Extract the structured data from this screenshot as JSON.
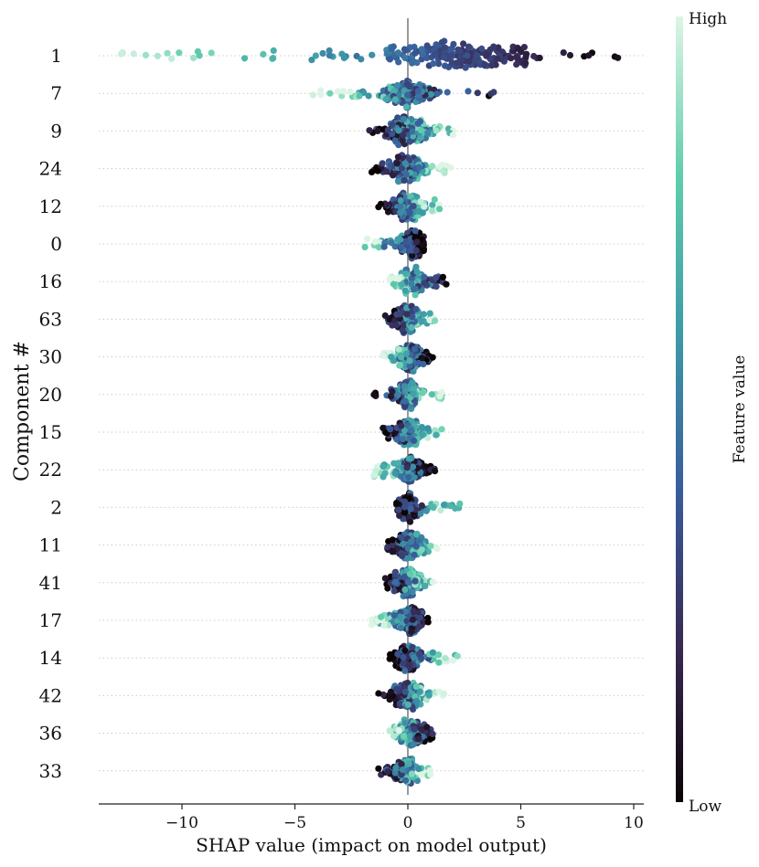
{
  "chart_data": {
    "type": "scatter",
    "subtype": "beeswarm",
    "title": "",
    "xlabel": "SHAP value (impact on model output)",
    "ylabel": "Component #",
    "xlim": [
      -13.8,
      10.4
    ],
    "xticks": [
      -10,
      -5,
      0,
      5,
      10
    ],
    "xtick_labels": [
      "−10",
      "−5",
      "0",
      "5",
      "10"
    ],
    "zero_line": true,
    "grid": false,
    "colorbar": {
      "label": "Feature value",
      "high_label": "High",
      "low_label": "Low",
      "colors": [
        "#0b0405",
        "#382a54",
        "#395d9c",
        "#3e9ba8",
        "#60ceac",
        "#def5e5"
      ]
    },
    "features": [
      {
        "name": "1",
        "min": -12.7,
        "max": 9.3,
        "lo_dir": 1,
        "spread": 0.14,
        "peak": 2.5,
        "width": 1.9,
        "density": 1.0
      },
      {
        "name": "7",
        "min": -4.2,
        "max": 3.8,
        "lo_dir": 1,
        "spread": 0.55,
        "peak": 0.0,
        "width": 0.55,
        "density": 0.9
      },
      {
        "name": "9",
        "min": -1.7,
        "max": 2.0,
        "lo_dir": -1,
        "spread": 0.55,
        "peak": 0.0,
        "width": 0.4,
        "density": 0.8
      },
      {
        "name": "24",
        "min": -1.6,
        "max": 1.9,
        "lo_dir": -1,
        "spread": 0.55,
        "peak": 0.0,
        "width": 0.4,
        "density": 0.8
      },
      {
        "name": "12",
        "min": -1.3,
        "max": 1.4,
        "lo_dir": -1,
        "spread": 0.55,
        "peak": 0.0,
        "width": 0.35,
        "density": 0.8
      },
      {
        "name": "0",
        "min": -1.9,
        "max": 0.7,
        "lo_dir": 1,
        "spread": 0.6,
        "peak": 0.25,
        "width": 0.25,
        "density": 0.8
      },
      {
        "name": "16",
        "min": -0.8,
        "max": 1.7,
        "lo_dir": 1,
        "spread": 0.55,
        "peak": 0.1,
        "width": 0.3,
        "density": 0.8
      },
      {
        "name": "63",
        "min": -1.0,
        "max": 1.2,
        "lo_dir": -1,
        "spread": 0.55,
        "peak": 0.0,
        "width": 0.3,
        "density": 0.8
      },
      {
        "name": "30",
        "min": -1.1,
        "max": 1.1,
        "lo_dir": 1,
        "spread": 0.55,
        "peak": 0.1,
        "width": 0.3,
        "density": 0.8
      },
      {
        "name": "20",
        "min": -1.5,
        "max": 1.5,
        "lo_dir": -1,
        "spread": 0.55,
        "peak": 0.0,
        "width": 0.3,
        "density": 0.8
      },
      {
        "name": "15",
        "min": -1.1,
        "max": 1.5,
        "lo_dir": -1,
        "spread": 0.55,
        "peak": 0.0,
        "width": 0.3,
        "density": 0.8
      },
      {
        "name": "22",
        "min": -1.5,
        "max": 1.2,
        "lo_dir": 1,
        "spread": 0.55,
        "peak": 0.1,
        "width": 0.3,
        "density": 0.8
      },
      {
        "name": "2",
        "min": -0.5,
        "max": 2.3,
        "lo_dir": -1,
        "spread": 0.6,
        "peak": 0.0,
        "width": 0.25,
        "density": 0.8
      },
      {
        "name": "11",
        "min": -0.9,
        "max": 1.3,
        "lo_dir": -1,
        "spread": 0.55,
        "peak": 0.0,
        "width": 0.3,
        "density": 0.8
      },
      {
        "name": "41",
        "min": -1.0,
        "max": 1.1,
        "lo_dir": -1,
        "spread": 0.55,
        "peak": 0.0,
        "width": 0.3,
        "density": 0.8
      },
      {
        "name": "17",
        "min": -1.6,
        "max": 0.9,
        "lo_dir": 1,
        "spread": 0.55,
        "peak": 0.1,
        "width": 0.3,
        "density": 0.8
      },
      {
        "name": "14",
        "min": -0.8,
        "max": 2.2,
        "lo_dir": -1,
        "spread": 0.55,
        "peak": 0.0,
        "width": 0.3,
        "density": 0.8
      },
      {
        "name": "42",
        "min": -1.3,
        "max": 1.6,
        "lo_dir": -1,
        "spread": 0.55,
        "peak": 0.0,
        "width": 0.3,
        "density": 0.8
      },
      {
        "name": "36",
        "min": -0.8,
        "max": 1.1,
        "lo_dir": 1,
        "spread": 0.55,
        "peak": 0.2,
        "width": 0.3,
        "density": 0.8
      },
      {
        "name": "33",
        "min": -1.3,
        "max": 1.0,
        "lo_dir": -1,
        "spread": 0.55,
        "peak": 0.0,
        "width": 0.3,
        "density": 0.8
      }
    ]
  }
}
